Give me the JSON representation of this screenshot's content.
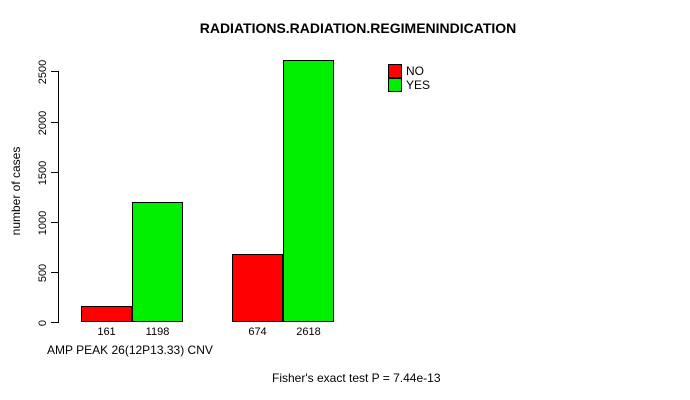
{
  "chart_data": {
    "type": "bar",
    "title": "RADIATIONS.RADIATION.REGIMENINDICATION",
    "ylabel": "number of cases",
    "xlabel": "AMP PEAK 26(12P13.33) CNV",
    "annotation": "Fisher's exact test P = 7.44e-13",
    "ylim": [
      0,
      2500
    ],
    "yticks": [
      0,
      500,
      1000,
      1500,
      2000,
      2500
    ],
    "grid": false,
    "legend_position": "top-right",
    "series": [
      {
        "name": "NO",
        "color": "#FF0000",
        "values": [
          161,
          674
        ]
      },
      {
        "name": "YES",
        "color": "#00EE00",
        "values": [
          1198,
          2618
        ]
      }
    ],
    "bar_labels": [
      [
        "161",
        "1198"
      ],
      [
        "674",
        "2618"
      ]
    ],
    "legend": [
      {
        "label": "NO",
        "color": "#FF0000"
      },
      {
        "label": "YES",
        "color": "#00EE00"
      }
    ]
  }
}
